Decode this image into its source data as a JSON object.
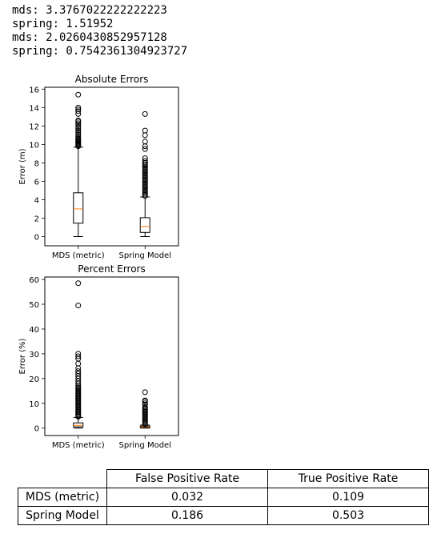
{
  "stdout_lines": [
    "mds: 3.3767022222222223",
    "spring: 1.51952",
    "mds: 2.0260430852957128",
    "spring: 0.7542361304923727"
  ],
  "colors": {
    "median": "#ff7f0e",
    "box": "#000000",
    "flier": "#000000"
  },
  "chart_data": [
    {
      "type": "boxplot",
      "title": "Absolute Errors",
      "xlabel": "",
      "ylabel": "Error (m)",
      "ylim": [
        -1,
        16.2
      ],
      "yticks": [
        0,
        2,
        4,
        6,
        8,
        10,
        12,
        14,
        16
      ],
      "categories": [
        "MDS (metric)",
        "Spring Model"
      ],
      "series": [
        {
          "whislo": 0.0,
          "q1": 1.45,
          "median": 3.0,
          "q3": 4.75,
          "whishi": 9.7,
          "fliers": [
            9.8,
            9.9,
            10.0,
            10.1,
            10.2,
            10.3,
            10.4,
            10.5,
            10.6,
            10.7,
            10.9,
            11.1,
            11.3,
            11.5,
            11.7,
            11.9,
            12.1,
            12.3,
            12.5,
            12.6,
            13.3,
            13.6,
            13.8,
            14.0,
            15.4
          ]
        },
        {
          "whislo": 0.0,
          "q1": 0.45,
          "median": 1.1,
          "q3": 2.05,
          "whishi": 4.3,
          "fliers": [
            4.4,
            4.55,
            4.7,
            4.85,
            5.0,
            5.15,
            5.3,
            5.45,
            5.6,
            5.75,
            5.9,
            6.05,
            6.2,
            6.35,
            6.5,
            6.65,
            6.8,
            6.95,
            7.1,
            7.25,
            7.4,
            7.55,
            7.7,
            7.85,
            8.0,
            8.2,
            8.5,
            9.5,
            9.8,
            10.3,
            11.0,
            11.5,
            13.3
          ]
        }
      ]
    },
    {
      "type": "boxplot",
      "title": "Percent Errors",
      "xlabel": "",
      "ylabel": "Error (%)",
      "ylim": [
        -3,
        61
      ],
      "yticks": [
        0,
        10,
        20,
        30,
        40,
        50,
        60
      ],
      "categories": [
        "MDS (metric)",
        "Spring Model"
      ],
      "series": [
        {
          "whislo": 0.0,
          "q1": 0.5,
          "median": 1.1,
          "q3": 2.1,
          "whishi": 4.3,
          "fliers": [
            4.6,
            5.0,
            5.5,
            6.0,
            6.5,
            7.0,
            7.5,
            8.0,
            8.5,
            9.0,
            9.5,
            10.0,
            10.5,
            11.0,
            11.5,
            12.0,
            12.5,
            13.0,
            13.5,
            14.0,
            14.5,
            15.0,
            15.5,
            16.0,
            16.5,
            17.2,
            18.0,
            19.0,
            20.0,
            21.0,
            22.0,
            23.0,
            24.2,
            26.0,
            28.0,
            29.0,
            30.0,
            49.5,
            58.5
          ]
        },
        {
          "whislo": 0.0,
          "q1": 0.2,
          "median": 0.45,
          "q3": 0.8,
          "whishi": 1.2,
          "fliers": [
            1.5,
            2.0,
            2.5,
            3.0,
            3.5,
            4.0,
            4.5,
            5.0,
            5.5,
            6.0,
            6.5,
            7.0,
            7.5,
            8.0,
            8.5,
            9.5,
            10.0,
            10.8,
            11.2,
            14.5
          ]
        }
      ]
    }
  ],
  "table": {
    "columns": [
      "False Positive Rate",
      "True Positive Rate"
    ],
    "rows": [
      {
        "label": "MDS (metric)",
        "values": [
          "0.032",
          "0.109"
        ]
      },
      {
        "label": "Spring Model",
        "values": [
          "0.186",
          "0.503"
        ]
      }
    ]
  }
}
